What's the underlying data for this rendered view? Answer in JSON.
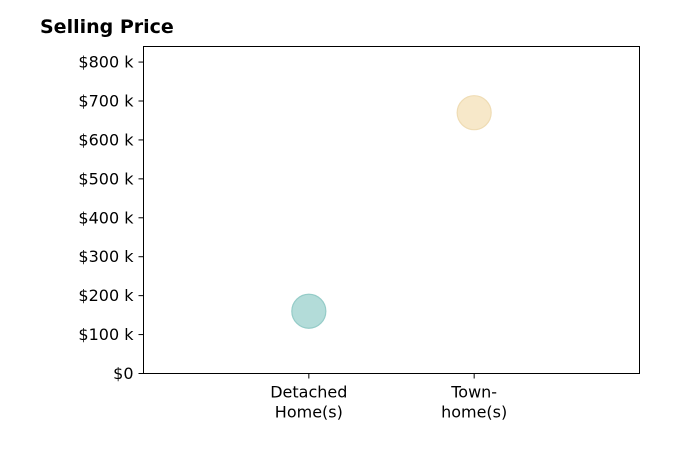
{
  "chart_data": {
    "type": "scatter",
    "title": "Selling Price",
    "xlabel": "",
    "ylabel": "",
    "categories": [
      "Detached\nHome(s)",
      "Town-\nhome(s)"
    ],
    "x_ticks": [
      {
        "lines": [
          "Detached",
          "Home(s)"
        ]
      },
      {
        "lines": [
          "Town-",
          "home(s)"
        ]
      }
    ],
    "y_ticks": [
      {
        "value": 0,
        "label": "$0"
      },
      {
        "value": 100000,
        "label": "$100 k"
      },
      {
        "value": 200000,
        "label": "$200 k"
      },
      {
        "value": 300000,
        "label": "$300 k"
      },
      {
        "value": 400000,
        "label": "$400 k"
      },
      {
        "value": 500000,
        "label": "$500 k"
      },
      {
        "value": 600000,
        "label": "$600 k"
      },
      {
        "value": 700000,
        "label": "$700 k"
      },
      {
        "value": 800000,
        "label": "$800 k"
      }
    ],
    "ylim": [
      0,
      840000
    ],
    "xlim": [
      -1,
      2
    ],
    "grid": false,
    "points": [
      {
        "category": "Detached\nHome(s)",
        "x": 0,
        "y": 160000,
        "color": "#b3dcd9",
        "stroke": "#95ccc8"
      },
      {
        "category": "Town-\nhome(s)",
        "x": 1,
        "y": 670000,
        "color": "#f7e8c9",
        "stroke": "#efdcb4"
      }
    ]
  }
}
